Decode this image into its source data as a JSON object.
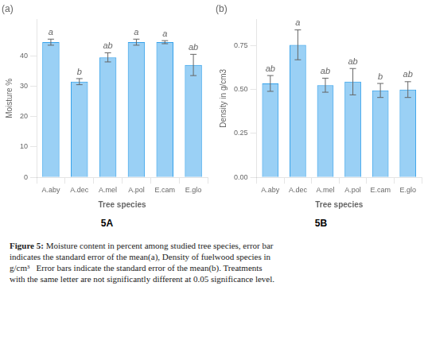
{
  "chart_data": [
    {
      "type": "bar",
      "title": "(a)",
      "subtitle": "5A",
      "categories": [
        "A.aby",
        "A.dec",
        "A.mel",
        "A.pol",
        "E.cam",
        "E.glo"
      ],
      "values": [
        44.5,
        31.5,
        39.5,
        44.5,
        44.5,
        37.0
      ],
      "errors": [
        1.0,
        1.0,
        1.5,
        1.0,
        0.5,
        3.5
      ],
      "letters": [
        "a",
        "b",
        "ab",
        "a",
        "a",
        "ab"
      ],
      "xlabel": "Tree species",
      "ylabel": "Moisture %",
      "ylim": [
        0,
        52
      ],
      "yticks": [
        0,
        10,
        20,
        30,
        40
      ],
      "grid": false
    },
    {
      "type": "bar",
      "title": "(b)",
      "subtitle": "5B",
      "categories": [
        "A.aby",
        "A.dec",
        "A.mel",
        "A.pol",
        "E.cam",
        "E.glo"
      ],
      "values": [
        0.535,
        0.755,
        0.525,
        0.545,
        0.495,
        0.5
      ],
      "errors": [
        0.045,
        0.085,
        0.04,
        0.075,
        0.04,
        0.045
      ],
      "letters": [
        "ab",
        "a",
        "ab",
        "ab",
        "b",
        "ab"
      ],
      "xlabel": "Tree species",
      "ylabel": "Density in g/cm3",
      "ylim": [
        0.0,
        0.9
      ],
      "yticks": [
        {
          "value": 0.0,
          "label": "0.00"
        },
        0.25,
        {
          "value": 0.5,
          "label": "0.50"
        },
        0.75
      ],
      "grid": false
    }
  ],
  "caption_title": "Figure 5:",
  "caption": " Moisture content in percent among studied tree species, error bar\nindicates the standard error of the mean(a), Density of fuelwood species in\ng/cm³   Error bars indicate the standard error of the mean(b). Treatments\nwith the same letter are not significantly different at 0.05 significance level."
}
